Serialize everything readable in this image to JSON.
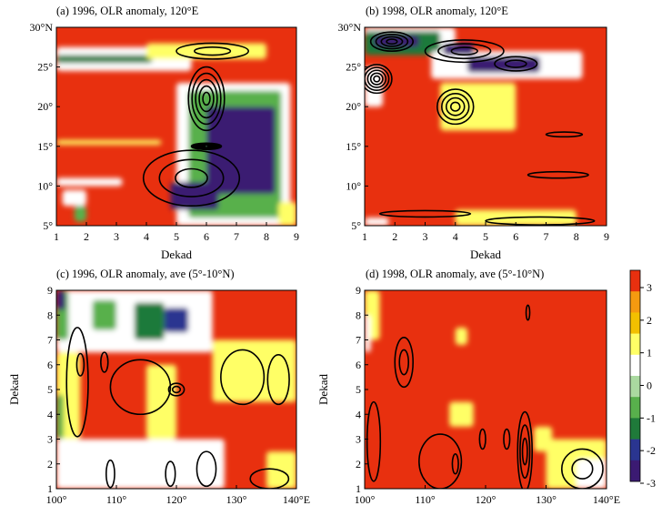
{
  "figure": {
    "colorbar": {
      "ticks": [
        "3",
        "2",
        "1",
        "0",
        "-1",
        "-2",
        "-3"
      ],
      "range": [
        -3,
        3
      ],
      "colors": [
        "#3b1a72",
        "#2a3590",
        "#1f7a3a",
        "#58b04c",
        "#aad9a0",
        "#ffffff",
        "#ffff66",
        "#f2c000",
        "#f59a10",
        "#e8300f"
      ]
    }
  },
  "chart_data": [
    {
      "type": "heatmap",
      "title": "(a) 1996, OLR anomaly, 120°E",
      "xlabel": "Dekad",
      "ylabel": "",
      "x_ticks": [
        "1",
        "2",
        "3",
        "4",
        "5",
        "6",
        "7",
        "8",
        "9"
      ],
      "y_ticks": [
        "5°",
        "10°",
        "15°",
        "20°",
        "25°",
        "30°N"
      ],
      "xlim": [
        1,
        9
      ],
      "ylim": [
        5,
        30
      ],
      "background_value": 3,
      "fill_regions": [
        {
          "value": 0.2,
          "x": [
            1.2,
            2.0
          ],
          "y": [
            7.5,
            9.5
          ]
        },
        {
          "value": -0.8,
          "x": [
            1.6,
            2.0
          ],
          "y": [
            5.5,
            7.5
          ]
        },
        {
          "value": 0.5,
          "x": [
            1.0,
            3.2
          ],
          "y": [
            10.0,
            11.0
          ]
        },
        {
          "value": 0.8,
          "x": [
            1.0,
            4.5
          ],
          "y": [
            15.2,
            15.8
          ]
        },
        {
          "value": 0.3,
          "x": [
            1.0,
            5.5
          ],
          "y": [
            24.5,
            27.5
          ]
        },
        {
          "value": -1.5,
          "x": [
            1.0,
            4.2
          ],
          "y": [
            25.5,
            26.5
          ]
        },
        {
          "value": 0.5,
          "x": [
            5.0,
            8.8
          ],
          "y": [
            5.0,
            23.0
          ]
        },
        {
          "value": -1.2,
          "x": [
            5.4,
            8.5
          ],
          "y": [
            6.0,
            22.0
          ]
        },
        {
          "value": -2.6,
          "x": [
            6.0,
            8.3
          ],
          "y": [
            9.0,
            20.0
          ]
        },
        {
          "value": -2.8,
          "x": [
            4.8,
            6.4
          ],
          "y": [
            7.0,
            10.5
          ]
        },
        {
          "value": 0.8,
          "x": [
            4.0,
            8.0
          ],
          "y": [
            26.0,
            28.0
          ]
        },
        {
          "value": 0.6,
          "x": [
            8.4,
            9.0
          ],
          "y": [
            5.0,
            8.0
          ]
        }
      ],
      "contours": [
        {
          "level": 1,
          "center": [
            6.0,
            15.0
          ],
          "rx": 0.5,
          "ry": 0.4,
          "nested": 10
        },
        {
          "level": 1,
          "center": [
            6.0,
            21.0
          ],
          "rx": 0.6,
          "ry": 4.0,
          "nested": 5
        },
        {
          "level": 1,
          "center": [
            5.5,
            11.0
          ],
          "rx": 1.6,
          "ry": 3.5,
          "nested": 3
        },
        {
          "level": 1,
          "center": [
            6.2,
            27.0
          ],
          "rx": 1.2,
          "ry": 1.0,
          "nested": 2
        }
      ]
    },
    {
      "type": "heatmap",
      "title": "(b) 1998, OLR anomaly, 120°E",
      "xlabel": "Dekad",
      "ylabel": "",
      "x_ticks": [
        "1",
        "2",
        "3",
        "4",
        "5",
        "6",
        "7",
        "8",
        "9"
      ],
      "y_ticks": [
        "5°",
        "10°",
        "15°",
        "20°",
        "25°",
        "30°N"
      ],
      "xlim": [
        1,
        9
      ],
      "ylim": [
        5,
        30
      ],
      "background_value": 3,
      "fill_regions": [
        {
          "value": 0.2,
          "x": [
            1.0,
            4.0
          ],
          "y": [
            27.0,
            30.0
          ]
        },
        {
          "value": -1.5,
          "x": [
            1.0,
            3.5
          ],
          "y": [
            26.5,
            29.5
          ]
        },
        {
          "value": -2.8,
          "x": [
            1.3,
            2.8
          ],
          "y": [
            27.5,
            29.0
          ]
        },
        {
          "value": 0.4,
          "x": [
            3.2,
            8.2
          ],
          "y": [
            23.5,
            27.0
          ]
        },
        {
          "value": -2.6,
          "x": [
            4.4,
            6.8
          ],
          "y": [
            24.3,
            26.3
          ]
        },
        {
          "value": -2.7,
          "x": [
            3.6,
            4.6
          ],
          "y": [
            26.5,
            28.0
          ]
        },
        {
          "value": 0.3,
          "x": [
            1.0,
            1.6
          ],
          "y": [
            20.0,
            25.0
          ]
        },
        {
          "value": 0.6,
          "x": [
            3.5,
            6.0
          ],
          "y": [
            17.0,
            23.0
          ]
        },
        {
          "value": 0.8,
          "x": [
            4.0,
            8.0
          ],
          "y": [
            5.0,
            7.0
          ]
        },
        {
          "value": 0.4,
          "x": [
            1.0,
            1.8
          ],
          "y": [
            5.0,
            6.0
          ]
        }
      ],
      "contours": [
        {
          "level": 1,
          "center": [
            1.9,
            28.2
          ],
          "rx": 0.7,
          "ry": 1.2,
          "nested": 4
        },
        {
          "level": 1,
          "center": [
            1.4,
            23.5
          ],
          "rx": 0.5,
          "ry": 1.8,
          "nested": 5
        },
        {
          "level": 1,
          "center": [
            4.0,
            20.0
          ],
          "rx": 0.6,
          "ry": 2.2,
          "nested": 4
        },
        {
          "level": 1,
          "center": [
            4.3,
            27.0
          ],
          "rx": 1.3,
          "ry": 1.4,
          "nested": 3
        },
        {
          "level": 1,
          "center": [
            6.0,
            25.4
          ],
          "rx": 0.7,
          "ry": 0.9,
          "nested": 2
        },
        {
          "level": 1,
          "center": [
            7.6,
            16.5
          ],
          "rx": 0.6,
          "ry": 0.3,
          "nested": 1
        },
        {
          "level": 1,
          "center": [
            7.4,
            11.4
          ],
          "rx": 1.0,
          "ry": 0.4,
          "nested": 1
        },
        {
          "level": 1,
          "center": [
            3.0,
            6.5
          ],
          "rx": 1.5,
          "ry": 0.4,
          "nested": 1
        },
        {
          "level": 1,
          "center": [
            6.8,
            5.6
          ],
          "rx": 1.8,
          "ry": 0.5,
          "nested": 1
        }
      ]
    },
    {
      "type": "heatmap",
      "title": "(c) 1996, OLR anomaly, ave (5°-10°N)",
      "xlabel": "",
      "ylabel": "Dekad",
      "x_ticks": [
        "100°",
        "110°",
        "120°",
        "130°",
        "140°E"
      ],
      "y_ticks": [
        "1",
        "2",
        "3",
        "4",
        "5",
        "6",
        "7",
        "8",
        "9"
      ],
      "xlim": [
        100,
        140
      ],
      "ylim": [
        1,
        9
      ],
      "background_value": 3,
      "fill_regions": [
        {
          "value": 0.2,
          "x": [
            100.0,
            126.0
          ],
          "y": [
            6.5,
            9.0
          ]
        },
        {
          "value": -1.2,
          "x": [
            100.0,
            102.0
          ],
          "y": [
            7.0,
            9.0
          ]
        },
        {
          "value": -2.8,
          "x": [
            100.0,
            101.5
          ],
          "y": [
            8.2,
            9.0
          ]
        },
        {
          "value": -0.9,
          "x": [
            106.0,
            110.0
          ],
          "y": [
            7.4,
            8.6
          ]
        },
        {
          "value": -1.3,
          "x": [
            113.0,
            118.0
          ],
          "y": [
            7.0,
            8.5
          ]
        },
        {
          "value": -1.8,
          "x": [
            118.0,
            122.0
          ],
          "y": [
            7.3,
            8.3
          ]
        },
        {
          "value": 0.8,
          "x": [
            100.0,
            104.0
          ],
          "y": [
            3.0,
            6.5
          ]
        },
        {
          "value": -0.9,
          "x": [
            100.0,
            101.2
          ],
          "y": [
            3.0,
            4.8
          ]
        },
        {
          "value": 0.5,
          "x": [
            100.0,
            128.0
          ],
          "y": [
            1.0,
            3.0
          ]
        },
        {
          "value": 0.2,
          "x": [
            101.0,
            128.0
          ],
          "y": [
            1.5,
            2.3
          ]
        },
        {
          "value": 0.9,
          "x": [
            115.0,
            120.0
          ],
          "y": [
            3.0,
            6.0
          ]
        },
        {
          "value": 0.8,
          "x": [
            126.0,
            140.0
          ],
          "y": [
            4.5,
            7.0
          ]
        },
        {
          "value": 0.7,
          "x": [
            135.0,
            140.0
          ],
          "y": [
            1.0,
            2.5
          ]
        }
      ],
      "contours": [
        {
          "level": 1,
          "center": [
            120.0,
            5.0
          ],
          "rx": 1.3,
          "ry": 0.25,
          "nested": 2
        },
        {
          "level": 1,
          "center": [
            114.0,
            5.1
          ],
          "rx": 5.0,
          "ry": 1.1,
          "nested": 1
        },
        {
          "level": 1,
          "center": [
            103.5,
            5.3
          ],
          "rx": 1.8,
          "ry": 2.2,
          "nested": 1
        },
        {
          "level": 1,
          "center": [
            104.0,
            6.0
          ],
          "rx": 0.6,
          "ry": 0.45,
          "nested": 1
        },
        {
          "level": 1,
          "center": [
            108.0,
            6.1
          ],
          "rx": 0.6,
          "ry": 0.4,
          "nested": 1
        },
        {
          "level": 1,
          "center": [
            131.0,
            5.5
          ],
          "rx": 3.6,
          "ry": 1.1,
          "nested": 1
        },
        {
          "level": 1,
          "center": [
            137.0,
            5.4
          ],
          "rx": 1.8,
          "ry": 1.0,
          "nested": 1
        },
        {
          "level": 1,
          "center": [
            109.0,
            1.6
          ],
          "rx": 0.7,
          "ry": 0.55,
          "nested": 1
        },
        {
          "level": 1,
          "center": [
            119.0,
            1.6
          ],
          "rx": 0.8,
          "ry": 0.5,
          "nested": 1
        },
        {
          "level": 1,
          "center": [
            125.0,
            1.8
          ],
          "rx": 1.6,
          "ry": 0.7,
          "nested": 1
        },
        {
          "level": 1,
          "center": [
            135.5,
            1.4
          ],
          "rx": 3.2,
          "ry": 0.4,
          "nested": 1
        }
      ]
    },
    {
      "type": "heatmap",
      "title": "(d) 1998, OLR anomaly, ave (5°-10°N)",
      "xlabel": "",
      "ylabel": "Dekad",
      "x_ticks": [
        "100°",
        "110°",
        "120°",
        "130°",
        "140°E"
      ],
      "y_ticks": [
        "1",
        "2",
        "3",
        "4",
        "5",
        "6",
        "7",
        "8",
        "9"
      ],
      "xlim": [
        100,
        140
      ],
      "ylim": [
        1,
        9
      ],
      "background_value": 3,
      "fill_regions": [
        {
          "value": 0.8,
          "x": [
            100.0,
            102.5
          ],
          "y": [
            7.0,
            9.0
          ]
        },
        {
          "value": 0.5,
          "x": [
            100.0,
            101.0
          ],
          "y": [
            6.5,
            8.0
          ]
        },
        {
          "value": 0.8,
          "x": [
            115.0,
            117.0
          ],
          "y": [
            6.8,
            7.5
          ]
        },
        {
          "value": 0.8,
          "x": [
            114.0,
            118.0
          ],
          "y": [
            3.5,
            4.5
          ]
        },
        {
          "value": 0.8,
          "x": [
            130.0,
            140.0
          ],
          "y": [
            1.0,
            3.0
          ]
        },
        {
          "value": 0.5,
          "x": [
            135.0,
            140.0
          ],
          "y": [
            1.0,
            2.2
          ]
        },
        {
          "value": 0.9,
          "x": [
            128.0,
            131.0
          ],
          "y": [
            2.5,
            3.5
          ]
        }
      ],
      "contours": [
        {
          "level": 1,
          "center": [
            106.5,
            6.1
          ],
          "rx": 1.5,
          "ry": 1.0,
          "nested": 2
        },
        {
          "level": 1,
          "center": [
            101.5,
            2.9
          ],
          "rx": 1.1,
          "ry": 1.6,
          "nested": 1
        },
        {
          "level": 1,
          "center": [
            112.5,
            2.1
          ],
          "rx": 3.5,
          "ry": 1.1,
          "nested": 1
        },
        {
          "level": 1,
          "center": [
            115.0,
            2.0
          ],
          "rx": 0.5,
          "ry": 0.4,
          "nested": 1
        },
        {
          "level": 1,
          "center": [
            119.5,
            3.0
          ],
          "rx": 0.5,
          "ry": 0.4,
          "nested": 1
        },
        {
          "level": 1,
          "center": [
            123.5,
            3.0
          ],
          "rx": 0.5,
          "ry": 0.4,
          "nested": 1
        },
        {
          "level": 1,
          "center": [
            126.5,
            2.5
          ],
          "rx": 1.2,
          "ry": 1.6,
          "nested": 3
        },
        {
          "level": 1,
          "center": [
            127.0,
            8.1
          ],
          "rx": 0.3,
          "ry": 0.3,
          "nested": 1
        },
        {
          "level": 1,
          "center": [
            136.0,
            1.8
          ],
          "rx": 3.4,
          "ry": 0.8,
          "nested": 2
        }
      ]
    }
  ]
}
